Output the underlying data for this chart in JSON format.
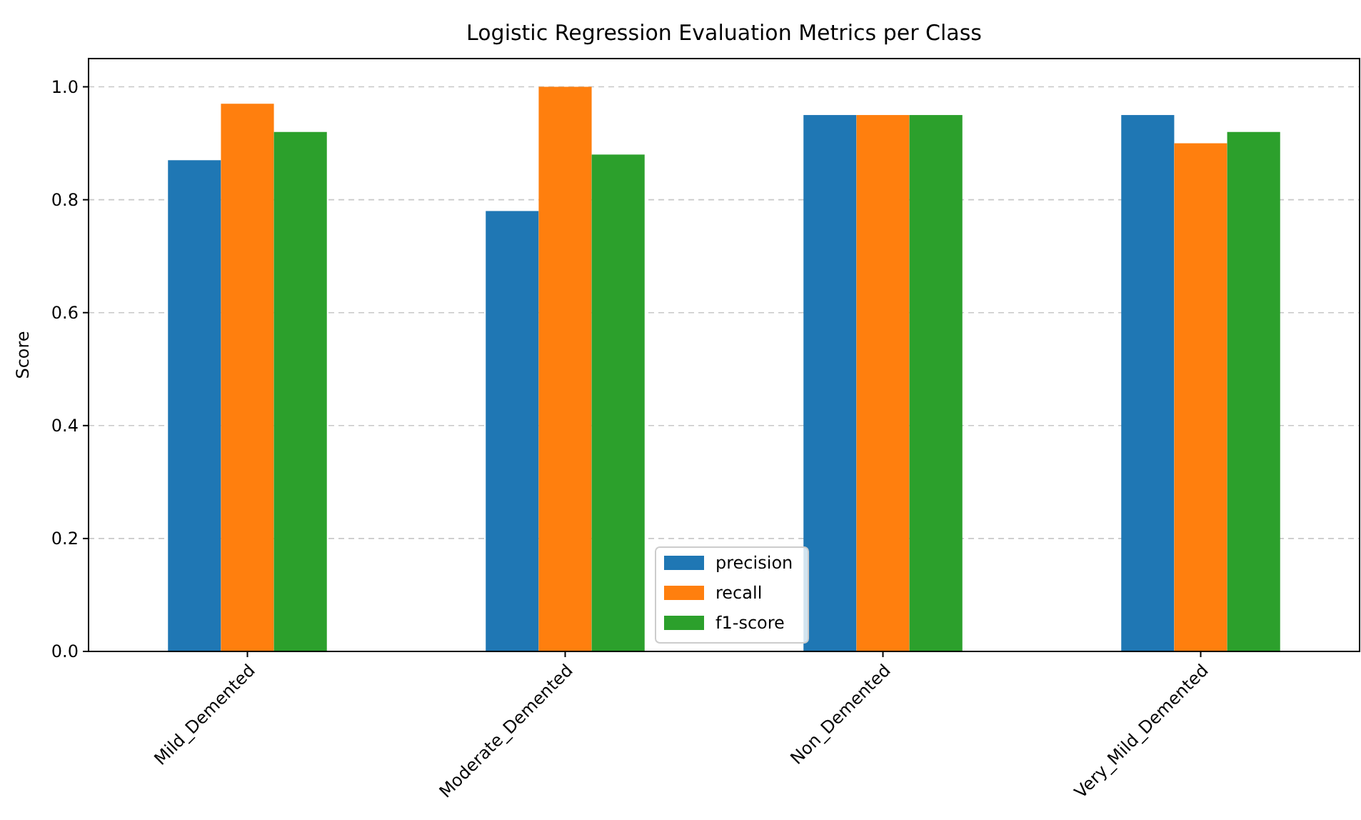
{
  "chart_data": {
    "type": "bar",
    "title": "Logistic Regression Evaluation Metrics per Class",
    "ylabel": "Score",
    "categories": [
      "Mild_Demented",
      "Moderate_Demented",
      "Non_Demented",
      "Very_Mild_Demented"
    ],
    "series": [
      {
        "name": "precision",
        "color": "#1f77b4",
        "values": [
          0.87,
          0.78,
          0.95,
          0.95
        ]
      },
      {
        "name": "recall",
        "color": "#ff7f0e",
        "values": [
          0.97,
          1.0,
          0.95,
          0.9
        ]
      },
      {
        "name": "f1-score",
        "color": "#2ca02c",
        "values": [
          0.92,
          0.88,
          0.95,
          0.92
        ]
      }
    ],
    "ylim": [
      0,
      1.05
    ],
    "yticks": [
      {
        "value": 0,
        "label": "0.0"
      },
      {
        "value": 0.2,
        "label": "0.2"
      },
      {
        "value": 0.4,
        "label": "0.4"
      },
      {
        "value": 0.6,
        "label": "0.6"
      },
      {
        "value": 0.8,
        "label": "0.8"
      },
      {
        "value": 1,
        "label": "1.0"
      }
    ],
    "grid": "y",
    "legend": "bottom"
  }
}
